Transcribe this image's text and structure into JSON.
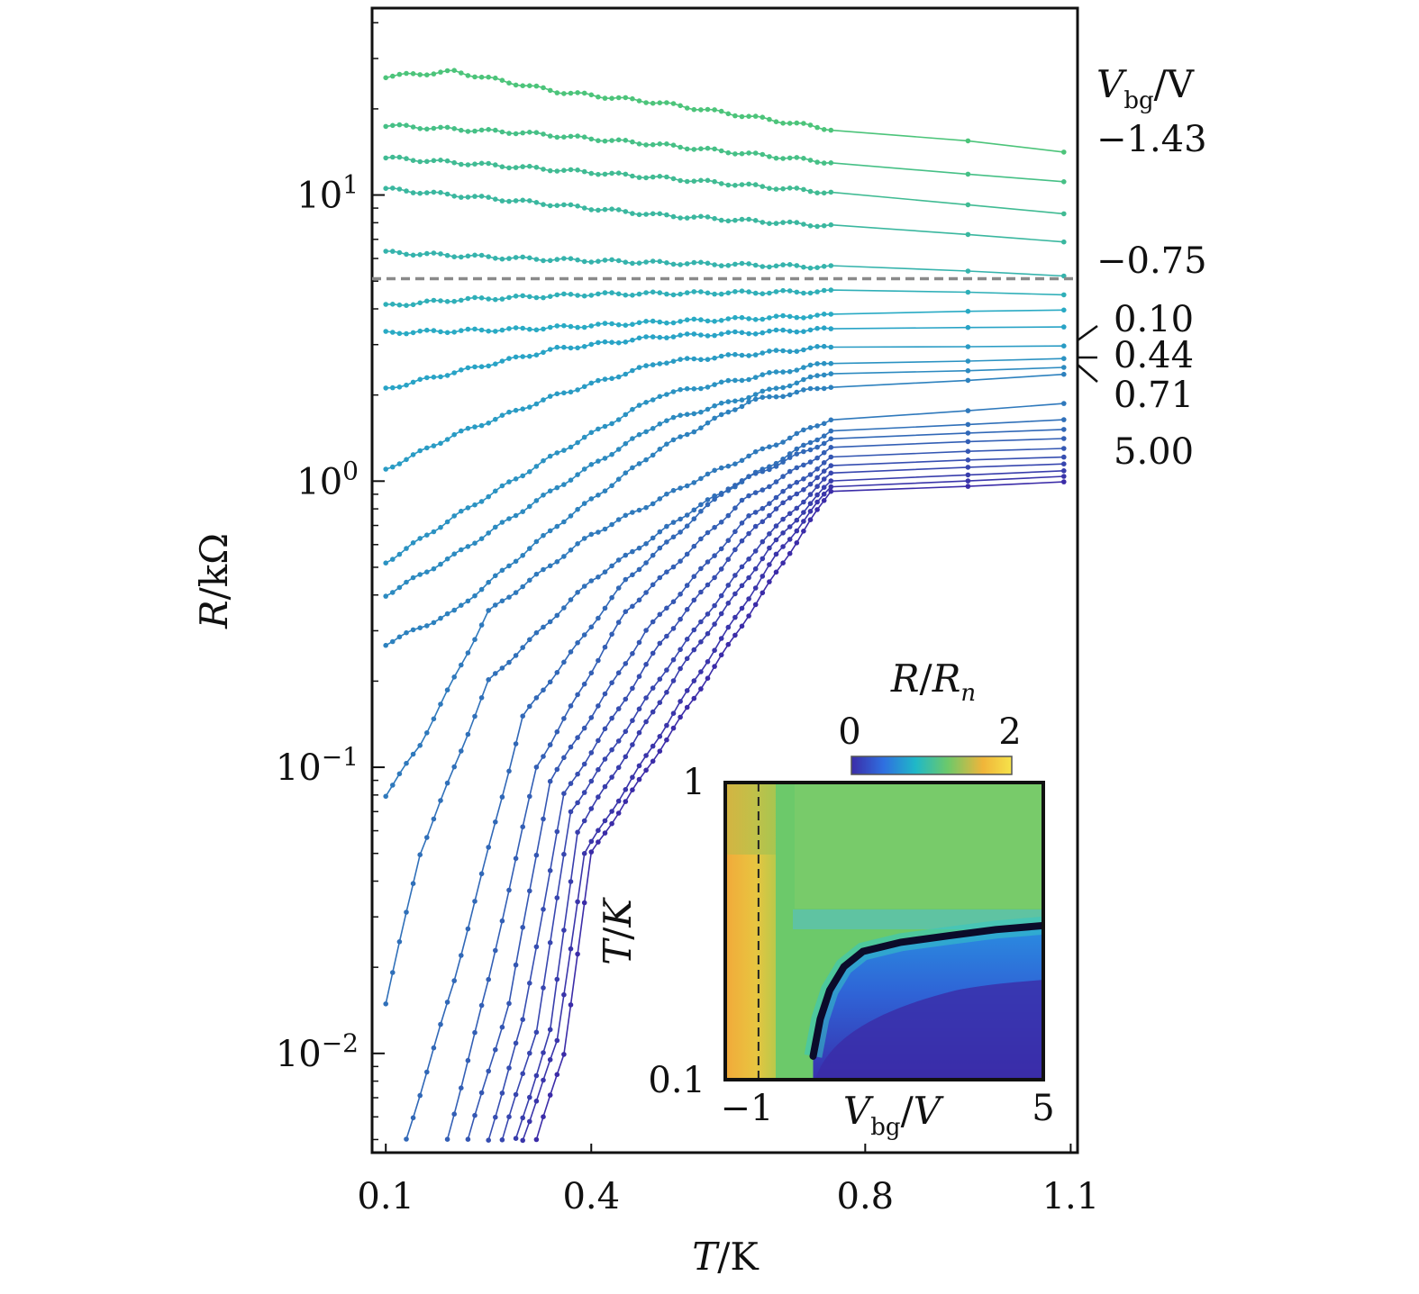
{
  "chart_data": [
    {
      "type": "line",
      "xlabel_var": "T",
      "xlabel_unit": "K",
      "ylabel_var": "R",
      "ylabel_unit": "kΩ",
      "x_scale": "linear",
      "y_scale": "log",
      "xlim": [
        0.08,
        1.11
      ],
      "ylim": [
        0.0045,
        45
      ],
      "x_ticks": [
        "0.1",
        "0.4",
        "0.8",
        "1.1"
      ],
      "x_tick_values": [
        0.1,
        0.4,
        0.8,
        1.1
      ],
      "y_ticks": [
        {
          "value": 10,
          "base": "10",
          "exp": "1"
        },
        {
          "value": 1,
          "base": "10",
          "exp": "0"
        },
        {
          "value": 0.1,
          "base": "10",
          "exp": "−1"
        },
        {
          "value": 0.01,
          "base": "10",
          "exp": "−2"
        }
      ],
      "legend_title_var": "V",
      "legend_title_sub": "bg",
      "legend_title_unit": "V",
      "gate_labels": [
        "−1.43",
        "−0.75",
        "0.10",
        "0.44",
        "0.71",
        "5.00"
      ],
      "dashed_reference_R": 5.1,
      "colors": {
        "start": "#4cc47a",
        "mid": "#27a9c8",
        "end": "#3b2ca8",
        "dashed": "#8a8a8a"
      },
      "series": [
        {
          "gate": "−1.43",
          "knots": [
            [
              0.1,
              26
            ],
            [
              0.2,
              27
            ],
            [
              0.35,
              23
            ],
            [
              0.5,
              21
            ],
            [
              0.75,
              17
            ],
            [
              0.95,
              15.5
            ],
            [
              1.09,
              14
            ]
          ]
        },
        {
          "gate": "",
          "knots": [
            [
              0.1,
              17.5
            ],
            [
              0.3,
              16.5
            ],
            [
              0.5,
              15
            ],
            [
              0.75,
              13
            ],
            [
              1.09,
              11
            ]
          ]
        },
        {
          "gate": "",
          "knots": [
            [
              0.1,
              13.5
            ],
            [
              0.3,
              12.5
            ],
            [
              0.5,
              11.5
            ],
            [
              0.75,
              10.2
            ],
            [
              1.09,
              8.5
            ]
          ]
        },
        {
          "gate": "",
          "knots": [
            [
              0.1,
              10.5
            ],
            [
              0.3,
              9.5
            ],
            [
              0.5,
              8.5
            ],
            [
              0.75,
              7.8
            ],
            [
              1.09,
              6.8
            ]
          ]
        },
        {
          "gate": "−0.75",
          "knots": [
            [
              0.1,
              6.3
            ],
            [
              0.3,
              6
            ],
            [
              0.5,
              5.8
            ],
            [
              0.75,
              5.6
            ],
            [
              1.09,
              5.2
            ]
          ]
        },
        {
          "gate": "",
          "knots": [
            [
              0.1,
              4.1
            ],
            [
              0.2,
              4.3
            ],
            [
              0.4,
              4.5
            ],
            [
              0.75,
              4.6
            ],
            [
              1.09,
              4.5
            ]
          ]
        },
        {
          "gate": "",
          "knots": [
            [
              0.1,
              3.3
            ],
            [
              0.3,
              3.4
            ],
            [
              0.5,
              3.6
            ],
            [
              0.75,
              3.8
            ],
            [
              1.09,
              4
            ]
          ]
        },
        {
          "gate": "0.10",
          "knots": [
            [
              0.1,
              2.1
            ],
            [
              0.2,
              2.4
            ],
            [
              0.35,
              2.9
            ],
            [
              0.5,
              3.2
            ],
            [
              0.75,
              3.4
            ],
            [
              1.09,
              3.5
            ]
          ]
        },
        {
          "gate": "",
          "knots": [
            [
              0.1,
              1.1
            ],
            [
              0.2,
              1.45
            ],
            [
              0.35,
              2
            ],
            [
              0.5,
              2.6
            ],
            [
              0.75,
              2.95
            ],
            [
              1.09,
              3
            ]
          ]
        },
        {
          "gate": "0.44",
          "knots": [
            [
              0.1,
              0.52
            ],
            [
              0.2,
              0.75
            ],
            [
              0.35,
              1.25
            ],
            [
              0.5,
              2
            ],
            [
              0.75,
              2.6
            ],
            [
              1.09,
              2.7
            ]
          ]
        },
        {
          "gate": "",
          "knots": [
            [
              0.1,
              0.4
            ],
            [
              0.2,
              0.55
            ],
            [
              0.35,
              0.95
            ],
            [
              0.5,
              1.6
            ],
            [
              0.75,
              2.4
            ],
            [
              1.09,
              2.5
            ]
          ]
        },
        {
          "gate": "0.71",
          "knots": [
            [
              0.1,
              0.27
            ],
            [
              0.2,
              0.35
            ],
            [
              0.35,
              0.7
            ],
            [
              0.5,
              1.3
            ],
            [
              0.63,
              1.9
            ],
            [
              0.75,
              2.15
            ],
            [
              1.09,
              2.35
            ]
          ]
        },
        {
          "gate": "",
          "knots": [
            [
              0.1,
              0.08
            ],
            [
              0.15,
              0.12
            ],
            [
              0.25,
              0.35
            ],
            [
              0.4,
              0.65
            ],
            [
              0.55,
              1
            ],
            [
              0.75,
              1.65
            ],
            [
              1.09,
              1.85
            ]
          ]
        },
        {
          "gate": "",
          "knots": [
            [
              0.1,
              0.015
            ],
            [
              0.15,
              0.05
            ],
            [
              0.25,
              0.2
            ],
            [
              0.4,
              0.45
            ],
            [
              0.55,
              0.8
            ],
            [
              0.75,
              1.5
            ],
            [
              1.09,
              1.62
            ]
          ]
        },
        {
          "gate": "",
          "knots": [
            [
              0.13,
              0.005
            ],
            [
              0.2,
              0.018
            ],
            [
              0.3,
              0.15
            ],
            [
              0.45,
              0.45
            ],
            [
              0.6,
              0.95
            ],
            [
              0.75,
              1.4
            ],
            [
              1.09,
              1.5
            ]
          ]
        },
        {
          "gate": "",
          "knots": [
            [
              0.19,
              0.005
            ],
            [
              0.25,
              0.018
            ],
            [
              0.32,
              0.1
            ],
            [
              0.45,
              0.35
            ],
            [
              0.62,
              0.85
            ],
            [
              0.75,
              1.3
            ],
            [
              1.09,
              1.4
            ]
          ]
        },
        {
          "gate": "",
          "knots": [
            [
              0.22,
              0.005
            ],
            [
              0.28,
              0.015
            ],
            [
              0.34,
              0.09
            ],
            [
              0.48,
              0.3
            ],
            [
              0.63,
              0.75
            ],
            [
              0.75,
              1.2
            ],
            [
              1.09,
              1.3
            ]
          ]
        },
        {
          "gate": "",
          "knots": [
            [
              0.25,
              0.005
            ],
            [
              0.3,
              0.013
            ],
            [
              0.36,
              0.08
            ],
            [
              0.5,
              0.27
            ],
            [
              0.64,
              0.7
            ],
            [
              0.75,
              1.12
            ],
            [
              1.09,
              1.22
            ]
          ]
        },
        {
          "gate": "",
          "knots": [
            [
              0.27,
              0.005
            ],
            [
              0.32,
              0.012
            ],
            [
              0.37,
              0.07
            ],
            [
              0.52,
              0.24
            ],
            [
              0.65,
              0.62
            ],
            [
              0.75,
              1.06
            ],
            [
              1.09,
              1.16
            ]
          ]
        },
        {
          "gate": "",
          "knots": [
            [
              0.29,
              0.005
            ],
            [
              0.34,
              0.012
            ],
            [
              0.38,
              0.06
            ],
            [
              0.53,
              0.22
            ],
            [
              0.66,
              0.58
            ],
            [
              0.75,
              1
            ],
            [
              1.09,
              1.1
            ]
          ]
        },
        {
          "gate": "",
          "knots": [
            [
              0.3,
              0.005
            ],
            [
              0.35,
              0.011
            ],
            [
              0.39,
              0.05
            ],
            [
              0.55,
              0.2
            ],
            [
              0.67,
              0.55
            ],
            [
              0.75,
              0.96
            ],
            [
              1.09,
              1.05
            ]
          ]
        },
        {
          "gate": "5.00",
          "knots": [
            [
              0.32,
              0.005
            ],
            [
              0.36,
              0.01
            ],
            [
              0.4,
              0.05
            ],
            [
              0.56,
              0.19
            ],
            [
              0.68,
              0.52
            ],
            [
              0.75,
              0.93
            ],
            [
              1.09,
              1
            ]
          ]
        }
      ]
    },
    {
      "type": "heatmap",
      "title_var": "R",
      "title_var2": "R",
      "title_sub": "n",
      "colorbar_min": "0",
      "colorbar_max": "2",
      "xlabel_var": "V",
      "xlabel_sub": "bg",
      "xlabel_unit": "V",
      "ylabel_var": "T",
      "ylabel_unit": "K",
      "x_ticks": [
        "−1",
        "5"
      ],
      "x_tick_values": [
        -1,
        5
      ],
      "y_ticks": [
        "1",
        "0.1"
      ],
      "y_tick_values": [
        1,
        0.1
      ],
      "xlim": [
        -1.7,
        5
      ],
      "ylim_log": [
        0.1,
        1
      ],
      "dashed_x": -1,
      "phase_boundary": [
        [
          0.15,
          0.12
        ],
        [
          0.3,
          0.16
        ],
        [
          0.5,
          0.2
        ],
        [
          0.8,
          0.24
        ],
        [
          1.2,
          0.27
        ],
        [
          2,
          0.29
        ],
        [
          3,
          0.305
        ],
        [
          4,
          0.32
        ],
        [
          5,
          0.33
        ]
      ],
      "colormap": [
        "#3b2ca8",
        "#2f6fe0",
        "#1fb8c8",
        "#6cc96a",
        "#f0b53a",
        "#f6e34a"
      ]
    }
  ]
}
